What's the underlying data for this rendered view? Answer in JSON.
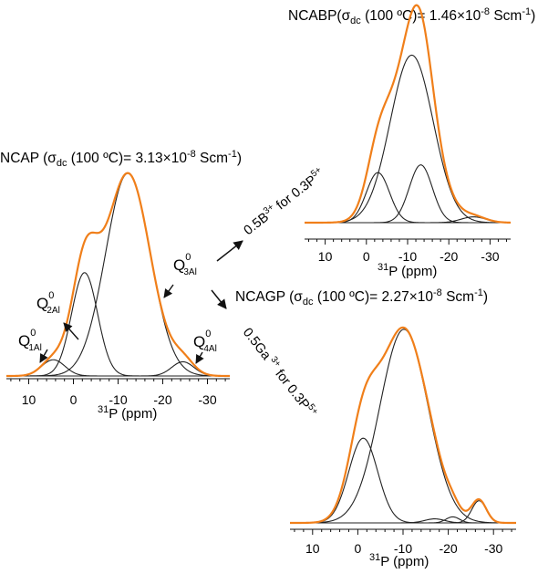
{
  "chart_data": [
    {
      "id": "ncap",
      "type": "line",
      "title": {
        "name": "NCAP",
        "open": " (σ",
        "sub": "dc",
        "mid": " (100 ºC)= 3.13×10",
        "sup": "-8",
        "unit": " Scm",
        "unit_sup": "-1",
        "close": ")"
      },
      "xlabel": {
        "sup": "31",
        "text": "P (ppm)"
      },
      "x_ticks": [
        10,
        0,
        -10,
        -20,
        -30
      ],
      "x_tick_labels": [
        "10",
        "0",
        "-10",
        "-20",
        "-30"
      ],
      "xlim": [
        15,
        -35
      ],
      "ylim": [
        0,
        1
      ],
      "envelope": {
        "color": "#f07f1a",
        "components": [
          0,
          1,
          2,
          3
        ]
      },
      "components": [
        {
          "center": 4.5,
          "width": 2.6,
          "amplitude": 0.08
        },
        {
          "center": -2.5,
          "width": 2.9,
          "amplitude": 0.51
        },
        {
          "center": -12.2,
          "width": 5.0,
          "amplitude": 1.0
        },
        {
          "center": -24.5,
          "width": 2.5,
          "amplitude": 0.07
        }
      ],
      "component_color": "#222222",
      "annotations": [
        {
          "main": "Q",
          "sup": "0",
          "sub": "1Al"
        },
        {
          "main": "Q",
          "sup": "0",
          "sub": "2Al"
        },
        {
          "main": "Q",
          "sup": "0",
          "sub": "3Al"
        },
        {
          "main": "Q",
          "sup": "0",
          "sub": "4Al"
        }
      ]
    },
    {
      "id": "ncabp",
      "type": "line",
      "title": {
        "name": "NCABP",
        "open": "(σ",
        "sub": "dc",
        "mid": " (100 ºC)= 1.46×10",
        "sup": "-8",
        "unit": " Scm",
        "unit_sup": "-1",
        "close": ")"
      },
      "xlabel": {
        "sup": "31",
        "text": "P (ppm)"
      },
      "x_ticks": [
        10,
        0,
        -10,
        -20,
        -30
      ],
      "x_tick_labels": [
        "10",
        "0",
        "-10",
        "-20",
        "-30"
      ],
      "xlim": [
        15,
        -35
      ],
      "ylim": [
        0,
        1
      ],
      "envelope": {
        "color": "#f07f1a",
        "components": [
          0,
          1,
          2,
          3
        ]
      },
      "components": [
        {
          "center": -2.8,
          "width": 2.8,
          "amplitude": 0.26
        },
        {
          "center": -11.0,
          "width": 5.2,
          "amplitude": 0.87
        },
        {
          "center": -13.2,
          "width": 2.8,
          "amplitude": 0.3
        },
        {
          "center": -26.0,
          "width": 3.0,
          "amplitude": 0.03
        }
      ],
      "component_color": "#222222"
    },
    {
      "id": "ncagp",
      "type": "line",
      "title": {
        "name": "NCAGP",
        "open": " (σ",
        "sub": "dc",
        "mid": " (100 ºC)= 2.27×10",
        "sup": "-8",
        "unit": " Scm",
        "unit_sup": "-1",
        "close": ")"
      },
      "xlabel": {
        "sup": "31",
        "text": "P (ppm)"
      },
      "x_ticks": [
        10,
        0,
        -10,
        -20,
        -30
      ],
      "x_tick_labels": [
        "10",
        "0",
        "-10",
        "-20",
        "-30"
      ],
      "xlim": [
        15,
        -35
      ],
      "ylim": [
        0,
        1
      ],
      "envelope": {
        "color": "#f07f1a",
        "components": [
          0,
          1,
          2,
          3,
          4
        ]
      },
      "components": [
        {
          "center": -1.2,
          "width": 3.2,
          "amplitude": 0.42
        },
        {
          "center": -10.2,
          "width": 5.3,
          "amplitude": 0.96
        },
        {
          "center": -17.0,
          "width": 2.2,
          "amplitude": 0.02
        },
        {
          "center": -21.0,
          "width": 1.5,
          "amplitude": 0.03
        },
        {
          "center": -26.8,
          "width": 1.6,
          "amplitude": 0.11
        }
      ],
      "component_color": "#222222"
    }
  ],
  "substitution_labels": [
    {
      "coef": "0.5B",
      "ion_sup": "3+",
      "text": "  for 0.3P",
      "p_sup": "5+"
    },
    {
      "coef": "0.5Ga",
      "ion_sup": " 3+",
      "text": "  for 0.3P",
      "p_sup": "5+"
    }
  ]
}
